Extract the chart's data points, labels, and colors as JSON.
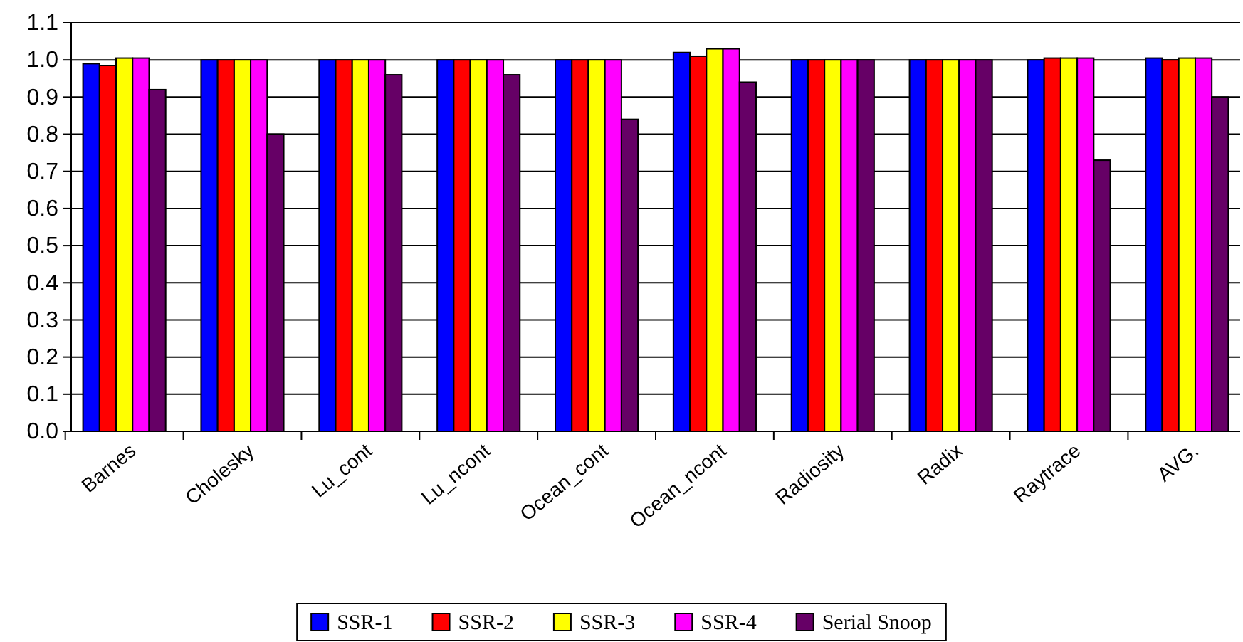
{
  "chart_data": {
    "type": "bar",
    "categories": [
      "Barnes",
      "Cholesky",
      "Lu_cont",
      "Lu_ncont",
      "Ocean_cont",
      "Ocean_ncont",
      "Radiosity",
      "Radix",
      "Raytrace",
      "AVG."
    ],
    "series": [
      {
        "name": "SSR-1",
        "color": "#0000ff",
        "values": [
          0.99,
          1.0,
          1.0,
          1.0,
          1.0,
          1.02,
          1.0,
          1.0,
          1.0,
          1.005
        ]
      },
      {
        "name": "SSR-2",
        "color": "#ff0000",
        "values": [
          0.985,
          1.0,
          1.0,
          1.0,
          1.0,
          1.01,
          1.0,
          1.0,
          1.005,
          1.0
        ]
      },
      {
        "name": "SSR-3",
        "color": "#ffff00",
        "values": [
          1.005,
          1.0,
          1.0,
          1.0,
          1.0,
          1.03,
          1.0,
          1.0,
          1.005,
          1.005
        ]
      },
      {
        "name": "SSR-4",
        "color": "#ff00ff",
        "values": [
          1.005,
          1.0,
          1.0,
          1.0,
          1.0,
          1.03,
          1.0,
          1.0,
          1.005,
          1.005
        ]
      },
      {
        "name": "Serial Snoop",
        "color": "#660066",
        "values": [
          0.92,
          0.8,
          0.96,
          0.96,
          0.84,
          0.94,
          1.0,
          1.0,
          0.73,
          0.9
        ]
      }
    ],
    "ylim": [
      0,
      1.1
    ],
    "yticks": [
      {
        "value": 0,
        "label": "0.0"
      },
      {
        "value": 0.1,
        "label": "0.1"
      },
      {
        "value": 0.2,
        "label": "0.2"
      },
      {
        "value": 0.3,
        "label": "0.3"
      },
      {
        "value": 0.4,
        "label": "0.4"
      },
      {
        "value": 0.5,
        "label": "0.5"
      },
      {
        "value": 0.6,
        "label": "0.6"
      },
      {
        "value": 0.7,
        "label": "0.7"
      },
      {
        "value": 0.8,
        "label": "0.8"
      },
      {
        "value": 0.9,
        "label": "0.9"
      },
      {
        "value": 1.0,
        "label": "1.0"
      },
      {
        "value": 1.1,
        "label": "1.1"
      }
    ],
    "grid": "y",
    "legend": "bottom"
  }
}
